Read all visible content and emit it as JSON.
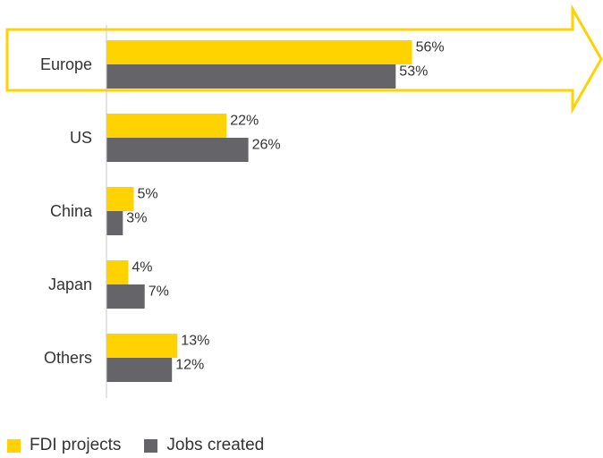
{
  "chart_data": {
    "type": "bar",
    "orientation": "horizontal",
    "categories": [
      "Europe",
      "US",
      "China",
      "Japan",
      "Others"
    ],
    "series": [
      {
        "name": "FDI projects",
        "values": [
          56,
          22,
          5,
          4,
          13
        ],
        "color": "#ffd200"
      },
      {
        "name": "Jobs created",
        "values": [
          53,
          26,
          3,
          7,
          12
        ],
        "color": "#646469"
      }
    ],
    "value_suffix": "%",
    "highlight": {
      "category": "Europe",
      "shape": "arrow",
      "color": "#ffd200"
    },
    "xlim": [
      0,
      100
    ],
    "grid": false,
    "legend_position": "bottom-left"
  }
}
